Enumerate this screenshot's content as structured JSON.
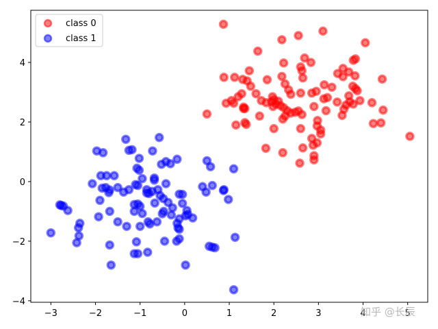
{
  "chart_data": {
    "type": "scatter",
    "title": "",
    "xlabel": "",
    "ylabel": "",
    "xlim": [
      -3.45,
      5.45
    ],
    "ylim": [
      -4.05,
      5.75
    ],
    "x_ticks": [
      -3,
      -2,
      -1,
      0,
      1,
      2,
      3,
      4,
      5
    ],
    "y_ticks": [
      -4,
      -2,
      0,
      2,
      4
    ],
    "grid": false,
    "legend_position": "top-left",
    "series": [
      {
        "name": "class 0",
        "color": "#ff0000",
        "points": [
          [
            0.87,
            5.28
          ],
          [
            1.64,
            4.38
          ],
          [
            2.18,
            4.76
          ],
          [
            2.55,
            4.9
          ],
          [
            3.1,
            5.05
          ],
          [
            4.05,
            4.66
          ],
          [
            2.69,
            4.15
          ],
          [
            2.83,
            4.0
          ],
          [
            2.22,
            3.98
          ],
          [
            2.6,
            3.85
          ],
          [
            2.63,
            3.72
          ],
          [
            1.45,
            3.72
          ],
          [
            0.88,
            3.5
          ],
          [
            1.12,
            3.5
          ],
          [
            1.3,
            3.43
          ],
          [
            1.85,
            3.42
          ],
          [
            2.18,
            3.53
          ],
          [
            2.65,
            3.48
          ],
          [
            3.43,
            3.63
          ],
          [
            3.55,
            3.52
          ],
          [
            3.55,
            3.8
          ],
          [
            3.68,
            3.68
          ],
          [
            3.83,
            4.12
          ],
          [
            3.78,
            4.07
          ],
          [
            4.43,
            3.44
          ],
          [
            3.82,
            3.55
          ],
          [
            2.25,
            3.28
          ],
          [
            2.33,
            3.08
          ],
          [
            3.13,
            3.25
          ],
          [
            3.3,
            3.17
          ],
          [
            1.48,
            3.2
          ],
          [
            3.77,
            3.2
          ],
          [
            3.83,
            3.12
          ],
          [
            3.87,
            3.05
          ],
          [
            2.95,
            3.03
          ],
          [
            2.85,
            2.97
          ],
          [
            2.6,
            2.97
          ],
          [
            1.6,
            2.95
          ],
          [
            2.38,
            2.93
          ],
          [
            1.28,
            2.95
          ],
          [
            1.2,
            2.85
          ],
          [
            1.05,
            2.72
          ],
          [
            0.93,
            2.63
          ],
          [
            1.1,
            2.63
          ],
          [
            1.72,
            2.72
          ],
          [
            1.83,
            2.65
          ],
          [
            1.95,
            2.68
          ],
          [
            1.97,
            2.85
          ],
          [
            2.0,
            2.75
          ],
          [
            2.05,
            2.6
          ],
          [
            1.98,
            2.52
          ],
          [
            2.1,
            2.7
          ],
          [
            2.15,
            2.55
          ],
          [
            2.22,
            2.48
          ],
          [
            2.3,
            2.38
          ],
          [
            2.38,
            2.3
          ],
          [
            2.48,
            2.33
          ],
          [
            2.55,
            2.37
          ],
          [
            2.63,
            2.25
          ],
          [
            2.9,
            2.52
          ],
          [
            3.12,
            2.78
          ],
          [
            3.2,
            2.82
          ],
          [
            3.17,
            2.38
          ],
          [
            3.42,
            2.67
          ],
          [
            3.62,
            2.57
          ],
          [
            3.7,
            2.68
          ],
          [
            3.78,
            2.6
          ],
          [
            3.93,
            2.72
          ],
          [
            4.2,
            2.65
          ],
          [
            4.45,
            2.4
          ],
          [
            3.53,
            2.22
          ],
          [
            1.32,
            2.45
          ],
          [
            1.35,
            2.45
          ],
          [
            1.32,
            2.5
          ],
          [
            1.68,
            2.2
          ],
          [
            2.2,
            2.1
          ],
          [
            2.25,
            2.2
          ],
          [
            2.98,
            2.05
          ],
          [
            2.97,
            1.87
          ],
          [
            3.05,
            1.73
          ],
          [
            3.05,
            1.6
          ],
          [
            1.15,
            1.9
          ],
          [
            1.38,
            1.92
          ],
          [
            1.35,
            1.98
          ],
          [
            2.0,
            1.78
          ],
          [
            2.6,
            1.78
          ],
          [
            4.23,
            1.95
          ],
          [
            4.4,
            1.97
          ],
          [
            2.85,
            1.45
          ],
          [
            2.88,
            1.22
          ],
          [
            2.97,
            1.3
          ],
          [
            1.82,
            1.12
          ],
          [
            2.2,
            0.97
          ],
          [
            2.65,
            1.13
          ],
          [
            2.9,
            0.87
          ],
          [
            2.9,
            0.73
          ],
          [
            2.58,
            0.62
          ],
          [
            0.5,
            2.27
          ],
          [
            5.05,
            1.52
          ],
          [
            3.68,
            2.88
          ],
          [
            1.4,
            3.38
          ],
          [
            3.57,
            2.43
          ]
        ]
      },
      {
        "name": "class 1",
        "color": "#0000ff",
        "points": [
          [
            -0.57,
            1.48
          ],
          [
            -1.32,
            1.42
          ],
          [
            -1.97,
            1.03
          ],
          [
            -1.83,
            0.97
          ],
          [
            -1.25,
            1.05
          ],
          [
            -1.18,
            1.07
          ],
          [
            -0.72,
            1.03
          ],
          [
            -0.52,
            0.58
          ],
          [
            -0.42,
            0.67
          ],
          [
            -0.17,
            0.75
          ],
          [
            -1.02,
            0.78
          ],
          [
            -1.07,
            0.45
          ],
          [
            -1.02,
            0.38
          ],
          [
            -1.88,
            0.2
          ],
          [
            -1.75,
            0.2
          ],
          [
            -1.58,
            0.2
          ],
          [
            -0.95,
            0.1
          ],
          [
            -0.68,
            0.12
          ],
          [
            -0.68,
            0.05
          ],
          [
            -2.07,
            -0.07
          ],
          [
            -1.77,
            -0.2
          ],
          [
            -1.85,
            -0.22
          ],
          [
            -1.5,
            -0.2
          ],
          [
            -1.68,
            -0.28
          ],
          [
            -1.7,
            -0.37
          ],
          [
            -1.25,
            -0.27
          ],
          [
            -1.37,
            -0.35
          ],
          [
            -1.1,
            -0.1
          ],
          [
            -1.05,
            -0.13
          ],
          [
            -0.85,
            -0.27
          ],
          [
            -0.8,
            -0.4
          ],
          [
            -0.6,
            -0.27
          ],
          [
            -0.42,
            -0.07
          ],
          [
            -0.73,
            -0.33
          ],
          [
            -0.55,
            -0.47
          ],
          [
            -0.48,
            -0.57
          ],
          [
            -0.37,
            -0.7
          ],
          [
            -0.27,
            -0.88
          ],
          [
            -0.12,
            -0.42
          ],
          [
            -0.05,
            -0.43
          ],
          [
            -0.05,
            -0.73
          ],
          [
            0.05,
            -0.97
          ],
          [
            0.02,
            -1.15
          ],
          [
            0.07,
            -1.1
          ],
          [
            -0.12,
            -1.25
          ],
          [
            -0.17,
            -1.4
          ],
          [
            -0.12,
            -1.6
          ],
          [
            -0.15,
            -1.55
          ],
          [
            0.5,
            0.7
          ],
          [
            0.58,
            0.5
          ],
          [
            0.4,
            -0.17
          ],
          [
            0.48,
            -0.35
          ],
          [
            0.62,
            -0.13
          ],
          [
            0.88,
            -0.27
          ],
          [
            0.87,
            -0.3
          ],
          [
            0.98,
            -0.6
          ],
          [
            1.1,
            0.43
          ],
          [
            -1.05,
            -0.75
          ],
          [
            -1.0,
            -0.83
          ],
          [
            -0.95,
            -1.07
          ],
          [
            -1.13,
            -0.77
          ],
          [
            -1.13,
            -1.0
          ],
          [
            -0.67,
            -0.72
          ],
          [
            -0.47,
            -1.0
          ],
          [
            -0.5,
            -1.08
          ],
          [
            -1.0,
            -1.5
          ],
          [
            -0.82,
            -1.35
          ],
          [
            -0.78,
            -1.42
          ],
          [
            -0.62,
            -1.35
          ],
          [
            -1.5,
            -1.35
          ],
          [
            -1.3,
            -1.5
          ],
          [
            -0.12,
            -1.92
          ],
          [
            -0.45,
            -2.0
          ],
          [
            -0.18,
            -2.0
          ],
          [
            -1.08,
            -2.02
          ],
          [
            -1.68,
            -1.0
          ],
          [
            -1.9,
            -0.63
          ],
          [
            -2.35,
            -1.4
          ],
          [
            -2.38,
            -1.55
          ],
          [
            -2.37,
            -1.82
          ],
          [
            -2.42,
            -2.05
          ],
          [
            -1.68,
            -2.13
          ],
          [
            -2.8,
            -0.78
          ],
          [
            -2.77,
            -0.8
          ],
          [
            -2.72,
            -0.82
          ],
          [
            -2.62,
            -0.97
          ],
          [
            -3.0,
            -1.72
          ],
          [
            -1.93,
            -1.18
          ],
          [
            -1.05,
            -2.42
          ],
          [
            -0.83,
            -2.37
          ],
          [
            -1.13,
            -2.42
          ],
          [
            -1.65,
            -2.8
          ],
          [
            0.55,
            -2.17
          ],
          [
            0.62,
            -2.2
          ],
          [
            0.68,
            -2.22
          ],
          [
            1.13,
            -1.87
          ],
          [
            0.02,
            -2.8
          ],
          [
            1.1,
            -3.63
          ],
          [
            -0.32,
            0.6
          ],
          [
            0.18,
            -1.22
          ],
          [
            -0.3,
            -1.12
          ],
          [
            -0.85,
            -0.38
          ]
        ]
      }
    ]
  },
  "watermark": "知乎 @长辰"
}
